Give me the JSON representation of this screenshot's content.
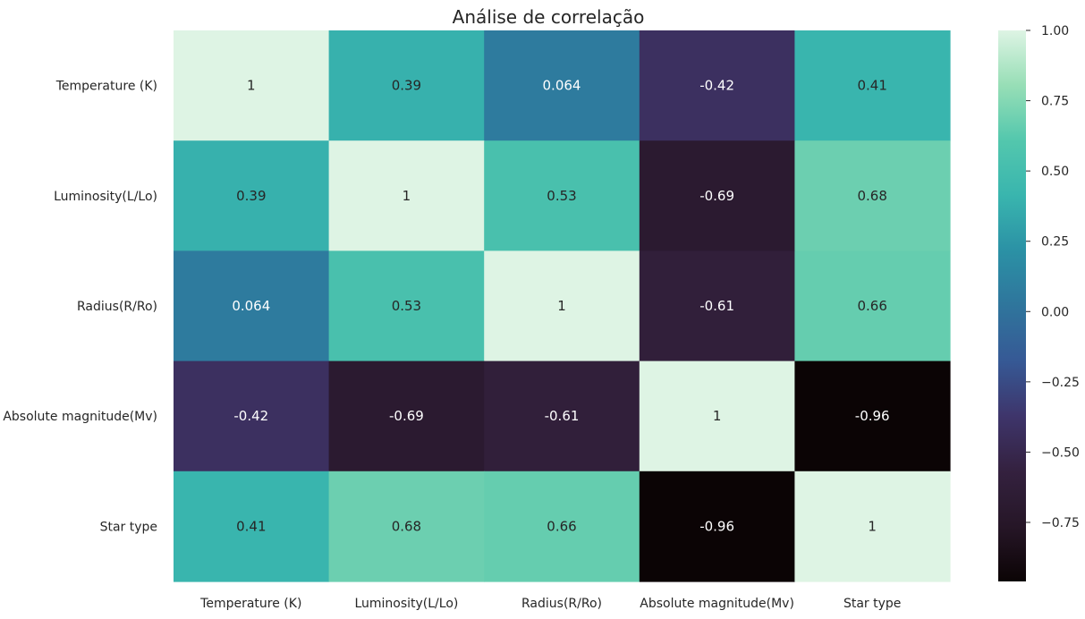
{
  "chart_data": {
    "type": "heatmap",
    "title": "Análise de correlação",
    "row_labels": [
      "Temperature (K)",
      "Luminosity(L/Lo)",
      "Radius(R/Ro)",
      "Absolute magnitude(Mv)",
      "Star type"
    ],
    "column_labels": [
      "Temperature (K)",
      "Luminosity(L/Lo)",
      "Radius(R/Ro)",
      "Absolute magnitude(Mv)",
      "Star type"
    ],
    "values": [
      [
        1,
        0.39,
        0.064,
        -0.42,
        0.41
      ],
      [
        0.39,
        1,
        0.53,
        -0.69,
        0.68
      ],
      [
        0.064,
        0.53,
        1,
        -0.61,
        0.66
      ],
      [
        -0.42,
        -0.69,
        -0.61,
        1,
        -0.96
      ],
      [
        0.41,
        0.68,
        0.66,
        -0.96,
        1
      ]
    ],
    "cell_labels": [
      [
        "1",
        "0.39",
        "0.064",
        "-0.42",
        "0.41"
      ],
      [
        "0.39",
        "1",
        "0.53",
        "-0.69",
        "0.68"
      ],
      [
        "0.064",
        "0.53",
        "1",
        "-0.61",
        "0.66"
      ],
      [
        "-0.42",
        "-0.69",
        "-0.61",
        "1",
        "-0.96"
      ],
      [
        "0.41",
        "0.68",
        "0.66",
        "-0.96",
        "1"
      ]
    ],
    "colormap": "mako",
    "color_range": [
      -0.96,
      1.0
    ],
    "colorbar_ticks": [
      1.0,
      0.75,
      0.5,
      0.25,
      0.0,
      -0.25,
      -0.5,
      -0.75
    ],
    "colorbar_tick_labels": [
      "1.00",
      "0.75",
      "0.50",
      "0.25",
      "0.00",
      "−0.25",
      "−0.50",
      "−0.75"
    ],
    "colorbar_position": "right",
    "grid": false
  }
}
